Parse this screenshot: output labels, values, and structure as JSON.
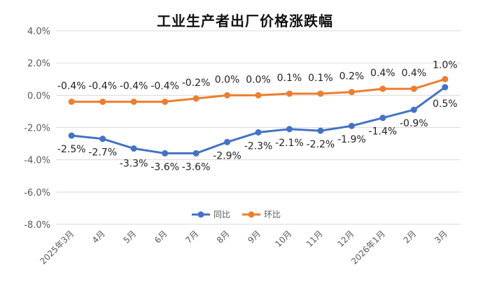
{
  "chart_data": {
    "type": "line",
    "title": "工业生产者出厂价格涨跌幅",
    "categories": [
      "2025年3月",
      "4月",
      "5月",
      "6月",
      "7月",
      "8月",
      "9月",
      "10月",
      "11月",
      "12月",
      "2026年1月",
      "2月",
      "3月"
    ],
    "series": [
      {
        "name": "同比",
        "color": "#4472C4",
        "values": [
          -2.5,
          -2.7,
          -3.3,
          -3.6,
          -3.6,
          -2.9,
          -2.3,
          -2.1,
          -2.2,
          -1.9,
          -1.4,
          -0.9,
          0.5
        ],
        "labels": [
          "-2.5%",
          "-2.7%",
          "-3.3%",
          "-3.6%",
          "-3.6%",
          "-2.9%",
          "-2.3%",
          "-2.1%",
          "-2.2%",
          "-1.9%",
          "-1.4%",
          "-0.9%",
          "0.5%"
        ]
      },
      {
        "name": "环比",
        "color": "#ED7D31",
        "values": [
          -0.4,
          -0.4,
          -0.4,
          -0.4,
          -0.2,
          0.0,
          0.0,
          0.1,
          0.1,
          0.2,
          0.4,
          0.4,
          1.0
        ],
        "labels": [
          "-0.4%",
          "-0.4%",
          "-0.4%",
          "-0.4%",
          "-0.2%",
          "0.0%",
          "0.0%",
          "0.1%",
          "0.1%",
          "0.2%",
          "0.4%",
          "0.4%",
          "1.0%"
        ]
      }
    ],
    "y_ticks": [
      "4.0%",
      "2.0%",
      "0.0%",
      "-2.0%",
      "-4.0%",
      "-6.0%",
      "-8.0%"
    ],
    "y_tick_values": [
      4,
      2,
      0,
      -2,
      -4,
      -6,
      -8
    ],
    "ylim": [
      -8,
      4
    ],
    "grid": true,
    "legend_position": "bottom-center",
    "xlabel": "",
    "ylabel": ""
  }
}
